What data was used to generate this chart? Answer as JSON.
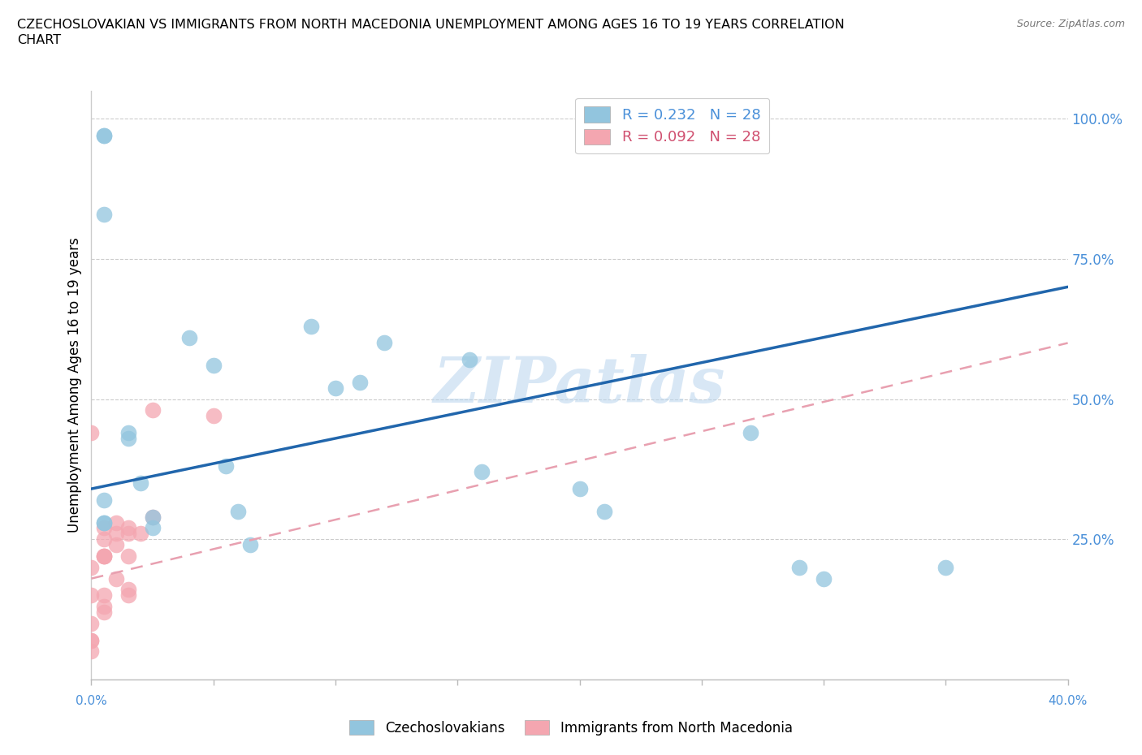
{
  "title_line1": "CZECHOSLOVAKIAN VS IMMIGRANTS FROM NORTH MACEDONIA UNEMPLOYMENT AMONG AGES 16 TO 19 YEARS CORRELATION",
  "title_line2": "CHART",
  "source": "Source: ZipAtlas.com",
  "ylabel": "Unemployment Among Ages 16 to 19 years",
  "legend_blue_R": 0.232,
  "legend_blue_N": 28,
  "legend_blue_label": "Czechoslovakians",
  "legend_pink_R": 0.092,
  "legend_pink_N": 28,
  "legend_pink_label": "Immigrants from North Macedonia",
  "blue_scatter_color": "#92c5de",
  "pink_scatter_color": "#f4a6b0",
  "blue_line_color": "#2166ac",
  "pink_line_color": "#e8a0b0",
  "watermark": "ZIPatlas",
  "blue_points_x": [
    0.005,
    0.005,
    0.005,
    0.005,
    0.005,
    0.005,
    0.015,
    0.015,
    0.02,
    0.025,
    0.025,
    0.04,
    0.05,
    0.055,
    0.06,
    0.065,
    0.09,
    0.1,
    0.11,
    0.12,
    0.155,
    0.16,
    0.2,
    0.21,
    0.27,
    0.35,
    0.29,
    0.3
  ],
  "blue_points_y": [
    0.97,
    0.97,
    0.83,
    0.32,
    0.28,
    0.28,
    0.44,
    0.43,
    0.35,
    0.29,
    0.27,
    0.61,
    0.56,
    0.38,
    0.3,
    0.24,
    0.63,
    0.52,
    0.53,
    0.6,
    0.57,
    0.37,
    0.34,
    0.3,
    0.44,
    0.2,
    0.2,
    0.18
  ],
  "pink_points_x": [
    0.0,
    0.0,
    0.0,
    0.0,
    0.0,
    0.0,
    0.0,
    0.005,
    0.005,
    0.005,
    0.005,
    0.005,
    0.005,
    0.005,
    0.01,
    0.01,
    0.01,
    0.01,
    0.015,
    0.015,
    0.015,
    0.015,
    0.015,
    0.02,
    0.025,
    0.025,
    0.05,
    0.005
  ],
  "pink_points_y": [
    0.44,
    0.2,
    0.15,
    0.1,
    0.07,
    0.07,
    0.05,
    0.27,
    0.25,
    0.22,
    0.22,
    0.22,
    0.15,
    0.13,
    0.28,
    0.26,
    0.24,
    0.18,
    0.27,
    0.26,
    0.22,
    0.16,
    0.15,
    0.26,
    0.48,
    0.29,
    0.47,
    0.12
  ],
  "blue_line_x0": 0.0,
  "blue_line_y0": 0.34,
  "blue_line_x1": 0.4,
  "blue_line_y1": 0.7,
  "pink_line_x0": 0.0,
  "pink_line_y0": 0.18,
  "pink_line_x1": 0.4,
  "pink_line_y1": 0.6,
  "xlim": [
    0.0,
    0.4
  ],
  "ylim": [
    0.0,
    1.05
  ],
  "ytick_vals": [
    0.25,
    0.5,
    0.75,
    1.0
  ],
  "ytick_labels": [
    "25.0%",
    "50.0%",
    "75.0%",
    "100.0%"
  ]
}
